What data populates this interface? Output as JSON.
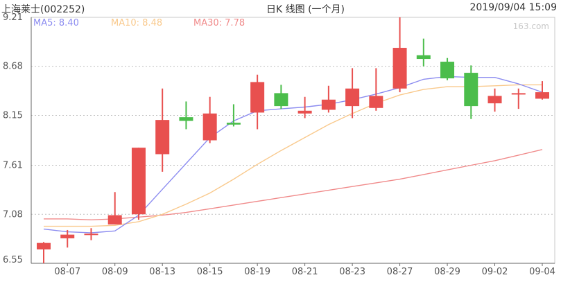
{
  "header": {
    "stock": "上海莱士(002252)",
    "title": "日K 线图 (一个月)",
    "timestamp": "2019/09/04 15:09"
  },
  "legend": [
    {
      "label": "MA5: 8.40",
      "color": "#8c8cf0"
    },
    {
      "label": "MA10: 8.48",
      "color": "#f9c98c"
    },
    {
      "label": "MA30: 7.78",
      "color": "#f08a8a"
    }
  ],
  "watermark": "163.com",
  "colors": {
    "up": "#e8504f",
    "down": "#4bbd4b",
    "grid": "#bfbfbf",
    "axis": "#666666"
  },
  "chart_data": {
    "type": "candlestick",
    "y_ticks": [
      "9.21",
      "8.68",
      "8.15",
      "7.61",
      "7.08",
      "6.55"
    ],
    "ylim": [
      6.55,
      9.21
    ],
    "x_tick_labels": [
      "08-07",
      "08-09",
      "08-13",
      "08-15",
      "08-19",
      "08-21",
      "08-23",
      "08-27",
      "08-29",
      "09-02",
      "09-04"
    ],
    "x_tick_slots": [
      1,
      3,
      5,
      7,
      9,
      11,
      13,
      15,
      17,
      19,
      21
    ],
    "candles": [
      {
        "o": 6.7,
        "c": 6.77,
        "h": 6.78,
        "l": 6.55
      },
      {
        "o": 6.82,
        "c": 6.86,
        "h": 6.91,
        "l": 6.72
      },
      {
        "o": 6.87,
        "c": 6.87,
        "h": 6.93,
        "l": 6.8
      },
      {
        "o": 6.97,
        "c": 7.07,
        "h": 7.32,
        "l": 6.97
      },
      {
        "o": 7.08,
        "c": 7.8,
        "h": 7.8,
        "l": 7.02
      },
      {
        "o": 7.73,
        "c": 8.1,
        "h": 8.44,
        "l": 7.54
      },
      {
        "o": 8.13,
        "c": 8.09,
        "h": 8.3,
        "l": 8.0
      },
      {
        "o": 7.88,
        "c": 8.17,
        "h": 8.35,
        "l": 7.85
      },
      {
        "o": 8.07,
        "c": 8.05,
        "h": 8.27,
        "l": 8.03
      },
      {
        "o": 8.18,
        "c": 8.51,
        "h": 8.59,
        "l": 8.0
      },
      {
        "o": 8.39,
        "c": 8.25,
        "h": 8.48,
        "l": 8.22
      },
      {
        "o": 8.17,
        "c": 8.2,
        "h": 8.35,
        "l": 8.12
      },
      {
        "o": 8.21,
        "c": 8.32,
        "h": 8.47,
        "l": 8.18
      },
      {
        "o": 8.25,
        "c": 8.44,
        "h": 8.66,
        "l": 8.12
      },
      {
        "o": 8.23,
        "c": 8.36,
        "h": 8.66,
        "l": 8.2
      },
      {
        "o": 8.44,
        "c": 8.88,
        "h": 9.21,
        "l": 8.4
      },
      {
        "o": 8.8,
        "c": 8.76,
        "h": 8.98,
        "l": 8.68
      },
      {
        "o": 8.73,
        "c": 8.55,
        "h": 8.77,
        "l": 8.53
      },
      {
        "o": 8.61,
        "c": 8.25,
        "h": 8.69,
        "l": 8.11
      },
      {
        "o": 8.28,
        "c": 8.36,
        "h": 8.44,
        "l": 8.19
      },
      {
        "o": 8.38,
        "c": 8.39,
        "h": 8.44,
        "l": 8.22
      },
      {
        "o": 8.33,
        "c": 8.4,
        "h": 8.52,
        "l": 8.32
      }
    ],
    "ma5": [
      6.92,
      6.89,
      6.88,
      6.9,
      7.07,
      7.35,
      7.63,
      7.91,
      8.09,
      8.2,
      8.22,
      8.24,
      8.27,
      8.32,
      8.38,
      8.45,
      8.54,
      8.57,
      8.56,
      8.56,
      8.49,
      8.4
    ],
    "ma10": [
      6.95,
      6.95,
      6.95,
      6.96,
      7.0,
      7.08,
      7.19,
      7.31,
      7.46,
      7.62,
      7.77,
      7.91,
      8.05,
      8.17,
      8.28,
      8.37,
      8.43,
      8.46,
      8.46,
      8.47,
      8.48,
      8.48
    ],
    "ma30": [
      7.03,
      7.03,
      7.02,
      7.03,
      7.05,
      7.07,
      7.1,
      7.14,
      7.18,
      7.22,
      7.26,
      7.3,
      7.34,
      7.38,
      7.42,
      7.46,
      7.51,
      7.56,
      7.61,
      7.66,
      7.72,
      7.78
    ]
  }
}
